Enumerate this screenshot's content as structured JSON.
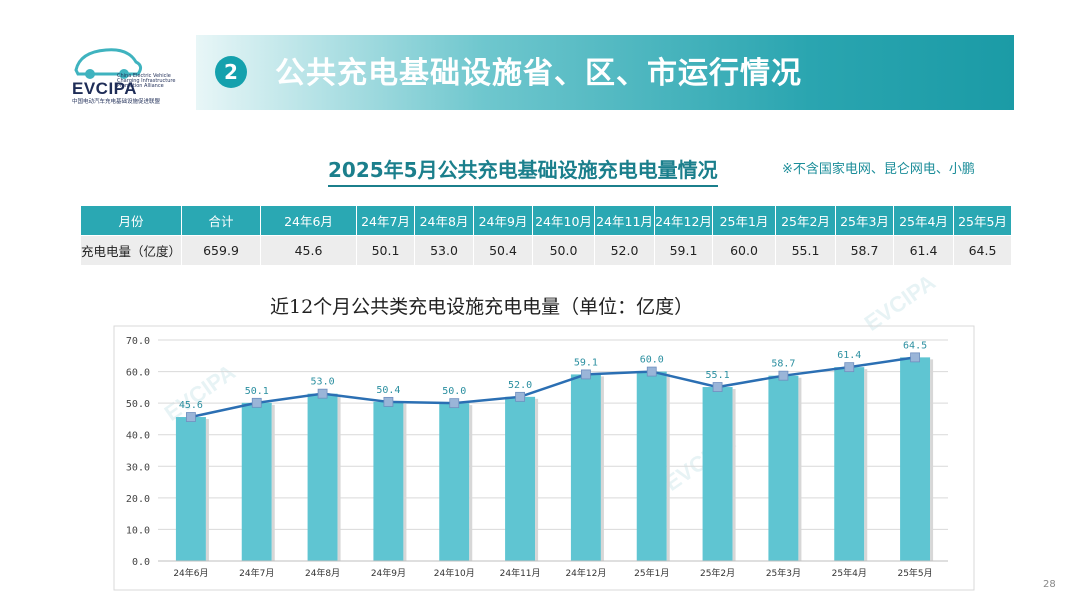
{
  "logo": {
    "brand": "EVCIPA",
    "small": "China Electric Vehicle Charging Infrastructure Promotion Alliance",
    "cn": "中国电动汽车充电基础设施促进联盟"
  },
  "header": {
    "section_number": "2",
    "title": "公共充电基础设施省、区、市运行情况"
  },
  "subtitle": "2025年5月公共充电基础设施充电电量情况",
  "note": "※不含国家电网、昆仑网电、小鹏",
  "table": {
    "row_headers": [
      "月份",
      "充电电量（亿度）"
    ],
    "columns": [
      "合计",
      "24年6月",
      "24年7月",
      "24年8月",
      "24年9月",
      "24年10月",
      "24年11月",
      "24年12月",
      "25年1月",
      "25年2月",
      "25年3月",
      "25年4月",
      "25年5月"
    ],
    "values": [
      "659.9",
      "45.6",
      "50.1",
      "53.0",
      "50.4",
      "50.0",
      "52.0",
      "59.1",
      "60.0",
      "55.1",
      "58.7",
      "61.4",
      "64.5"
    ]
  },
  "chart_data": {
    "type": "bar",
    "title": "近12个月公共类充电设施充电电量（单位：亿度）",
    "categories": [
      "24年6月",
      "24年7月",
      "24年8月",
      "24年9月",
      "24年10月",
      "24年11月",
      "24年12月",
      "25年1月",
      "25年2月",
      "25年3月",
      "25年4月",
      "25年5月"
    ],
    "values": [
      45.6,
      50.1,
      53.0,
      50.4,
      50.0,
      52.0,
      59.1,
      60.0,
      55.1,
      58.7,
      61.4,
      64.5
    ],
    "labels": [
      "45.6",
      "50.1",
      "53.0",
      "50.4",
      "50.0",
      "52.0",
      "59.1",
      "60.0",
      "55.1",
      "58.7",
      "61.4",
      "64.5"
    ],
    "overlay_line": true,
    "ylim": [
      0,
      70
    ],
    "yticks": [
      "0.0",
      "10.0",
      "20.0",
      "30.0",
      "40.0",
      "50.0",
      "60.0",
      "70.0"
    ],
    "grid": true,
    "colors": {
      "bar": "#5fc5d2",
      "line": "#2b6fb3",
      "marker": "#9ab5d8"
    }
  },
  "watermark": "EVCIPA",
  "page_number": "28"
}
